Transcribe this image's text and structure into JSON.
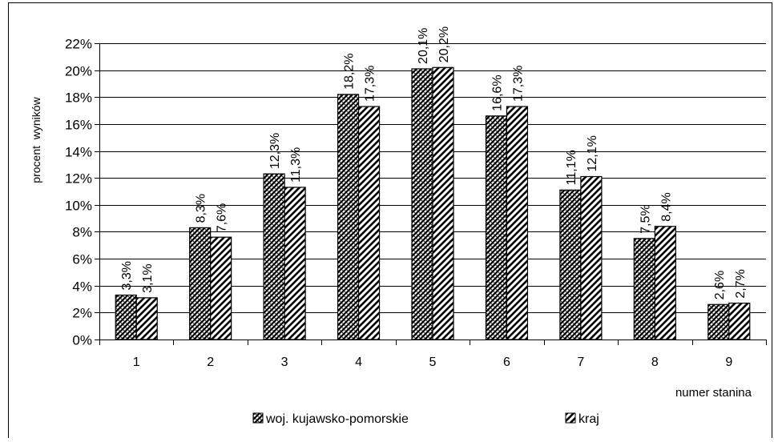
{
  "chart_data": {
    "type": "bar",
    "categories": [
      "1",
      "2",
      "3",
      "4",
      "5",
      "6",
      "7",
      "8",
      "9"
    ],
    "series": [
      {
        "name": "woj. kujawsko-pomorskie",
        "values": [
          3.3,
          8.3,
          12.3,
          18.2,
          20.1,
          16.6,
          11.1,
          7.5,
          2.6
        ],
        "labels": [
          "3,3%",
          "8,3%",
          "12,3%",
          "18,2%",
          "20,1%",
          "16,6%",
          "11,1%",
          "7,5%",
          "2,6%"
        ],
        "pattern": "crosshatch"
      },
      {
        "name": "kraj",
        "values": [
          3.1,
          7.6,
          11.3,
          17.3,
          20.2,
          17.3,
          12.1,
          8.4,
          2.7
        ],
        "labels": [
          "3,1%",
          "7,6%",
          "11,3%",
          "17,3%",
          "20,2%",
          "17,3%",
          "12,1%",
          "8,4%",
          "2,7%"
        ],
        "pattern": "diagonal"
      }
    ],
    "xlabel": "numer stanina",
    "ylabel": "procent  wyników",
    "ylim": [
      0,
      22
    ],
    "yticks": [
      0,
      2,
      4,
      6,
      8,
      10,
      12,
      14,
      16,
      18,
      20,
      22
    ],
    "ytick_labels": [
      "0%",
      "2%",
      "4%",
      "6%",
      "8%",
      "10%",
      "12%",
      "14%",
      "16%",
      "18%",
      "20%",
      "22%"
    ],
    "grid": true,
    "legend_position": "bottom",
    "colors": {
      "bar_fill": "#ffffff",
      "bar_pattern": "#000000",
      "grid": "#000000",
      "frame": "#000000"
    }
  }
}
